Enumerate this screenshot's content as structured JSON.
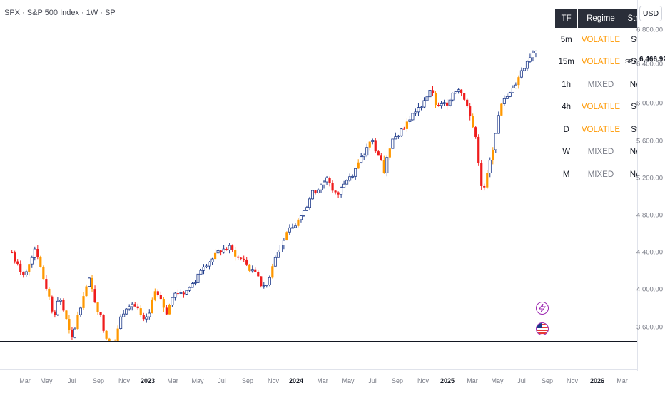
{
  "chart_header": {
    "title": "SPX · S&P 500 Index · 1W · SP"
  },
  "price_axis": {
    "currency": "USD",
    "last_price": "6,466.92",
    "last_price_symbol": "SPX",
    "labels": [
      "6,800.00",
      "6,400.00",
      "6,000.00",
      "5,600.00",
      "5,200.00",
      "4,800.00",
      "4,400.00",
      "4,000.00",
      "3,600.00"
    ]
  },
  "time_axis": {
    "labels": [
      {
        "text": "Mar",
        "year": false
      },
      {
        "text": "May",
        "year": false
      },
      {
        "text": "Jul",
        "year": false
      },
      {
        "text": "Sep",
        "year": false
      },
      {
        "text": "Nov",
        "year": false
      },
      {
        "text": "2023",
        "year": true
      },
      {
        "text": "Mar",
        "year": false
      },
      {
        "text": "May",
        "year": false
      },
      {
        "text": "Jul",
        "year": false
      },
      {
        "text": "Sep",
        "year": false
      },
      {
        "text": "Nov",
        "year": false
      },
      {
        "text": "2024",
        "year": true
      },
      {
        "text": "Mar",
        "year": false
      },
      {
        "text": "May",
        "year": false
      },
      {
        "text": "Jul",
        "year": false
      },
      {
        "text": "Sep",
        "year": false
      },
      {
        "text": "Nov",
        "year": false
      },
      {
        "text": "2025",
        "year": true
      },
      {
        "text": "Mar",
        "year": false
      },
      {
        "text": "May",
        "year": false
      },
      {
        "text": "Jul",
        "year": false
      },
      {
        "text": "Sep",
        "year": false
      },
      {
        "text": "Nov",
        "year": false
      },
      {
        "text": "2026",
        "year": true
      },
      {
        "text": "Mar",
        "year": false
      }
    ]
  },
  "regime_table": {
    "headers": [
      "TF",
      "Regime",
      "Strength"
    ],
    "rows": [
      {
        "tf": "5m",
        "regime": "VOLATILE",
        "strength": "Strong",
        "kind": "volatile"
      },
      {
        "tf": "15m",
        "regime": "VOLATILE",
        "strength": "Strong",
        "kind": "volatile"
      },
      {
        "tf": "1h",
        "regime": "MIXED",
        "strength": "Neutral",
        "kind": "mixed"
      },
      {
        "tf": "4h",
        "regime": "VOLATILE",
        "strength": "Strong",
        "kind": "volatile"
      },
      {
        "tf": "D",
        "regime": "VOLATILE",
        "strength": "Strong",
        "kind": "volatile"
      },
      {
        "tf": "W",
        "regime": "MIXED",
        "strength": "Neutral",
        "kind": "mixed"
      },
      {
        "tf": "M",
        "regime": "MIXED",
        "strength": "Neutral",
        "kind": "mixed"
      }
    ]
  },
  "colors": {
    "up_candle": "#1e3a8a",
    "down_candle": "#ef1c1c",
    "volatile_candle": "#ff9800",
    "volatile_text": "#ff9800",
    "mixed_text": "#787b86",
    "marker_outline": "#9c27b0"
  },
  "chart_data": {
    "type": "candlestick",
    "symbol": "SPX",
    "timeframe": "1W",
    "ylim": [
      3450,
      6900
    ],
    "weekly_close_path": [
      [
        2022.1,
        4520
      ],
      [
        2022.14,
        4380
      ],
      [
        2022.18,
        4300
      ],
      [
        2022.22,
        4450
      ],
      [
        2022.26,
        4580
      ],
      [
        2022.3,
        4330
      ],
      [
        2022.34,
        4150
      ],
      [
        2022.38,
        3920
      ],
      [
        2022.42,
        4100
      ],
      [
        2022.46,
        3900
      ],
      [
        2022.5,
        3670
      ],
      [
        2022.54,
        3900
      ],
      [
        2022.58,
        4130
      ],
      [
        2022.62,
        4250
      ],
      [
        2022.66,
        4050
      ],
      [
        2022.7,
        3880
      ],
      [
        2022.74,
        3680
      ],
      [
        2022.78,
        3600
      ],
      [
        2022.82,
        3850
      ],
      [
        2022.86,
        4000
      ],
      [
        2022.9,
        4050
      ],
      [
        2022.94,
        3980
      ],
      [
        2022.98,
        3850
      ],
      [
        2023.02,
        3920
      ],
      [
        2023.06,
        4150
      ],
      [
        2023.1,
        4050
      ],
      [
        2023.14,
        3950
      ],
      [
        2023.18,
        4100
      ],
      [
        2023.22,
        4150
      ],
      [
        2023.26,
        4130
      ],
      [
        2023.3,
        4200
      ],
      [
        2023.34,
        4280
      ],
      [
        2023.38,
        4400
      ],
      [
        2023.44,
        4450
      ],
      [
        2023.5,
        4540
      ],
      [
        2023.56,
        4560
      ],
      [
        2023.62,
        4480
      ],
      [
        2023.68,
        4400
      ],
      [
        2023.74,
        4300
      ],
      [
        2023.8,
        4150
      ],
      [
        2023.84,
        4350
      ],
      [
        2023.88,
        4500
      ],
      [
        2023.94,
        4680
      ],
      [
        2024.0,
        4780
      ],
      [
        2024.06,
        4900
      ],
      [
        2024.1,
        5050
      ],
      [
        2024.16,
        5150
      ],
      [
        2024.22,
        5230
      ],
      [
        2024.28,
        5050
      ],
      [
        2024.34,
        5200
      ],
      [
        2024.4,
        5300
      ],
      [
        2024.46,
        5450
      ],
      [
        2024.52,
        5600
      ],
      [
        2024.56,
        5450
      ],
      [
        2024.6,
        5300
      ],
      [
        2024.64,
        5550
      ],
      [
        2024.68,
        5650
      ],
      [
        2024.72,
        5700
      ],
      [
        2024.76,
        5780
      ],
      [
        2024.8,
        5850
      ],
      [
        2024.84,
        5900
      ],
      [
        2024.88,
        6020
      ],
      [
        2024.92,
        6050
      ],
      [
        2024.96,
        5900
      ],
      [
        2025.02,
        5950
      ],
      [
        2025.06,
        6050
      ],
      [
        2025.1,
        6100
      ],
      [
        2025.14,
        6000
      ],
      [
        2025.18,
        5800
      ],
      [
        2025.22,
        5600
      ],
      [
        2025.26,
        5050
      ],
      [
        2025.3,
        5300
      ],
      [
        2025.34,
        5600
      ],
      [
        2025.38,
        5900
      ],
      [
        2025.42,
        6000
      ],
      [
        2025.46,
        6050
      ],
      [
        2025.5,
        6200
      ],
      [
        2025.54,
        6300
      ],
      [
        2025.58,
        6400
      ],
      [
        2025.62,
        6466.92
      ]
    ],
    "events": [
      "lightning",
      "us-flag"
    ]
  }
}
